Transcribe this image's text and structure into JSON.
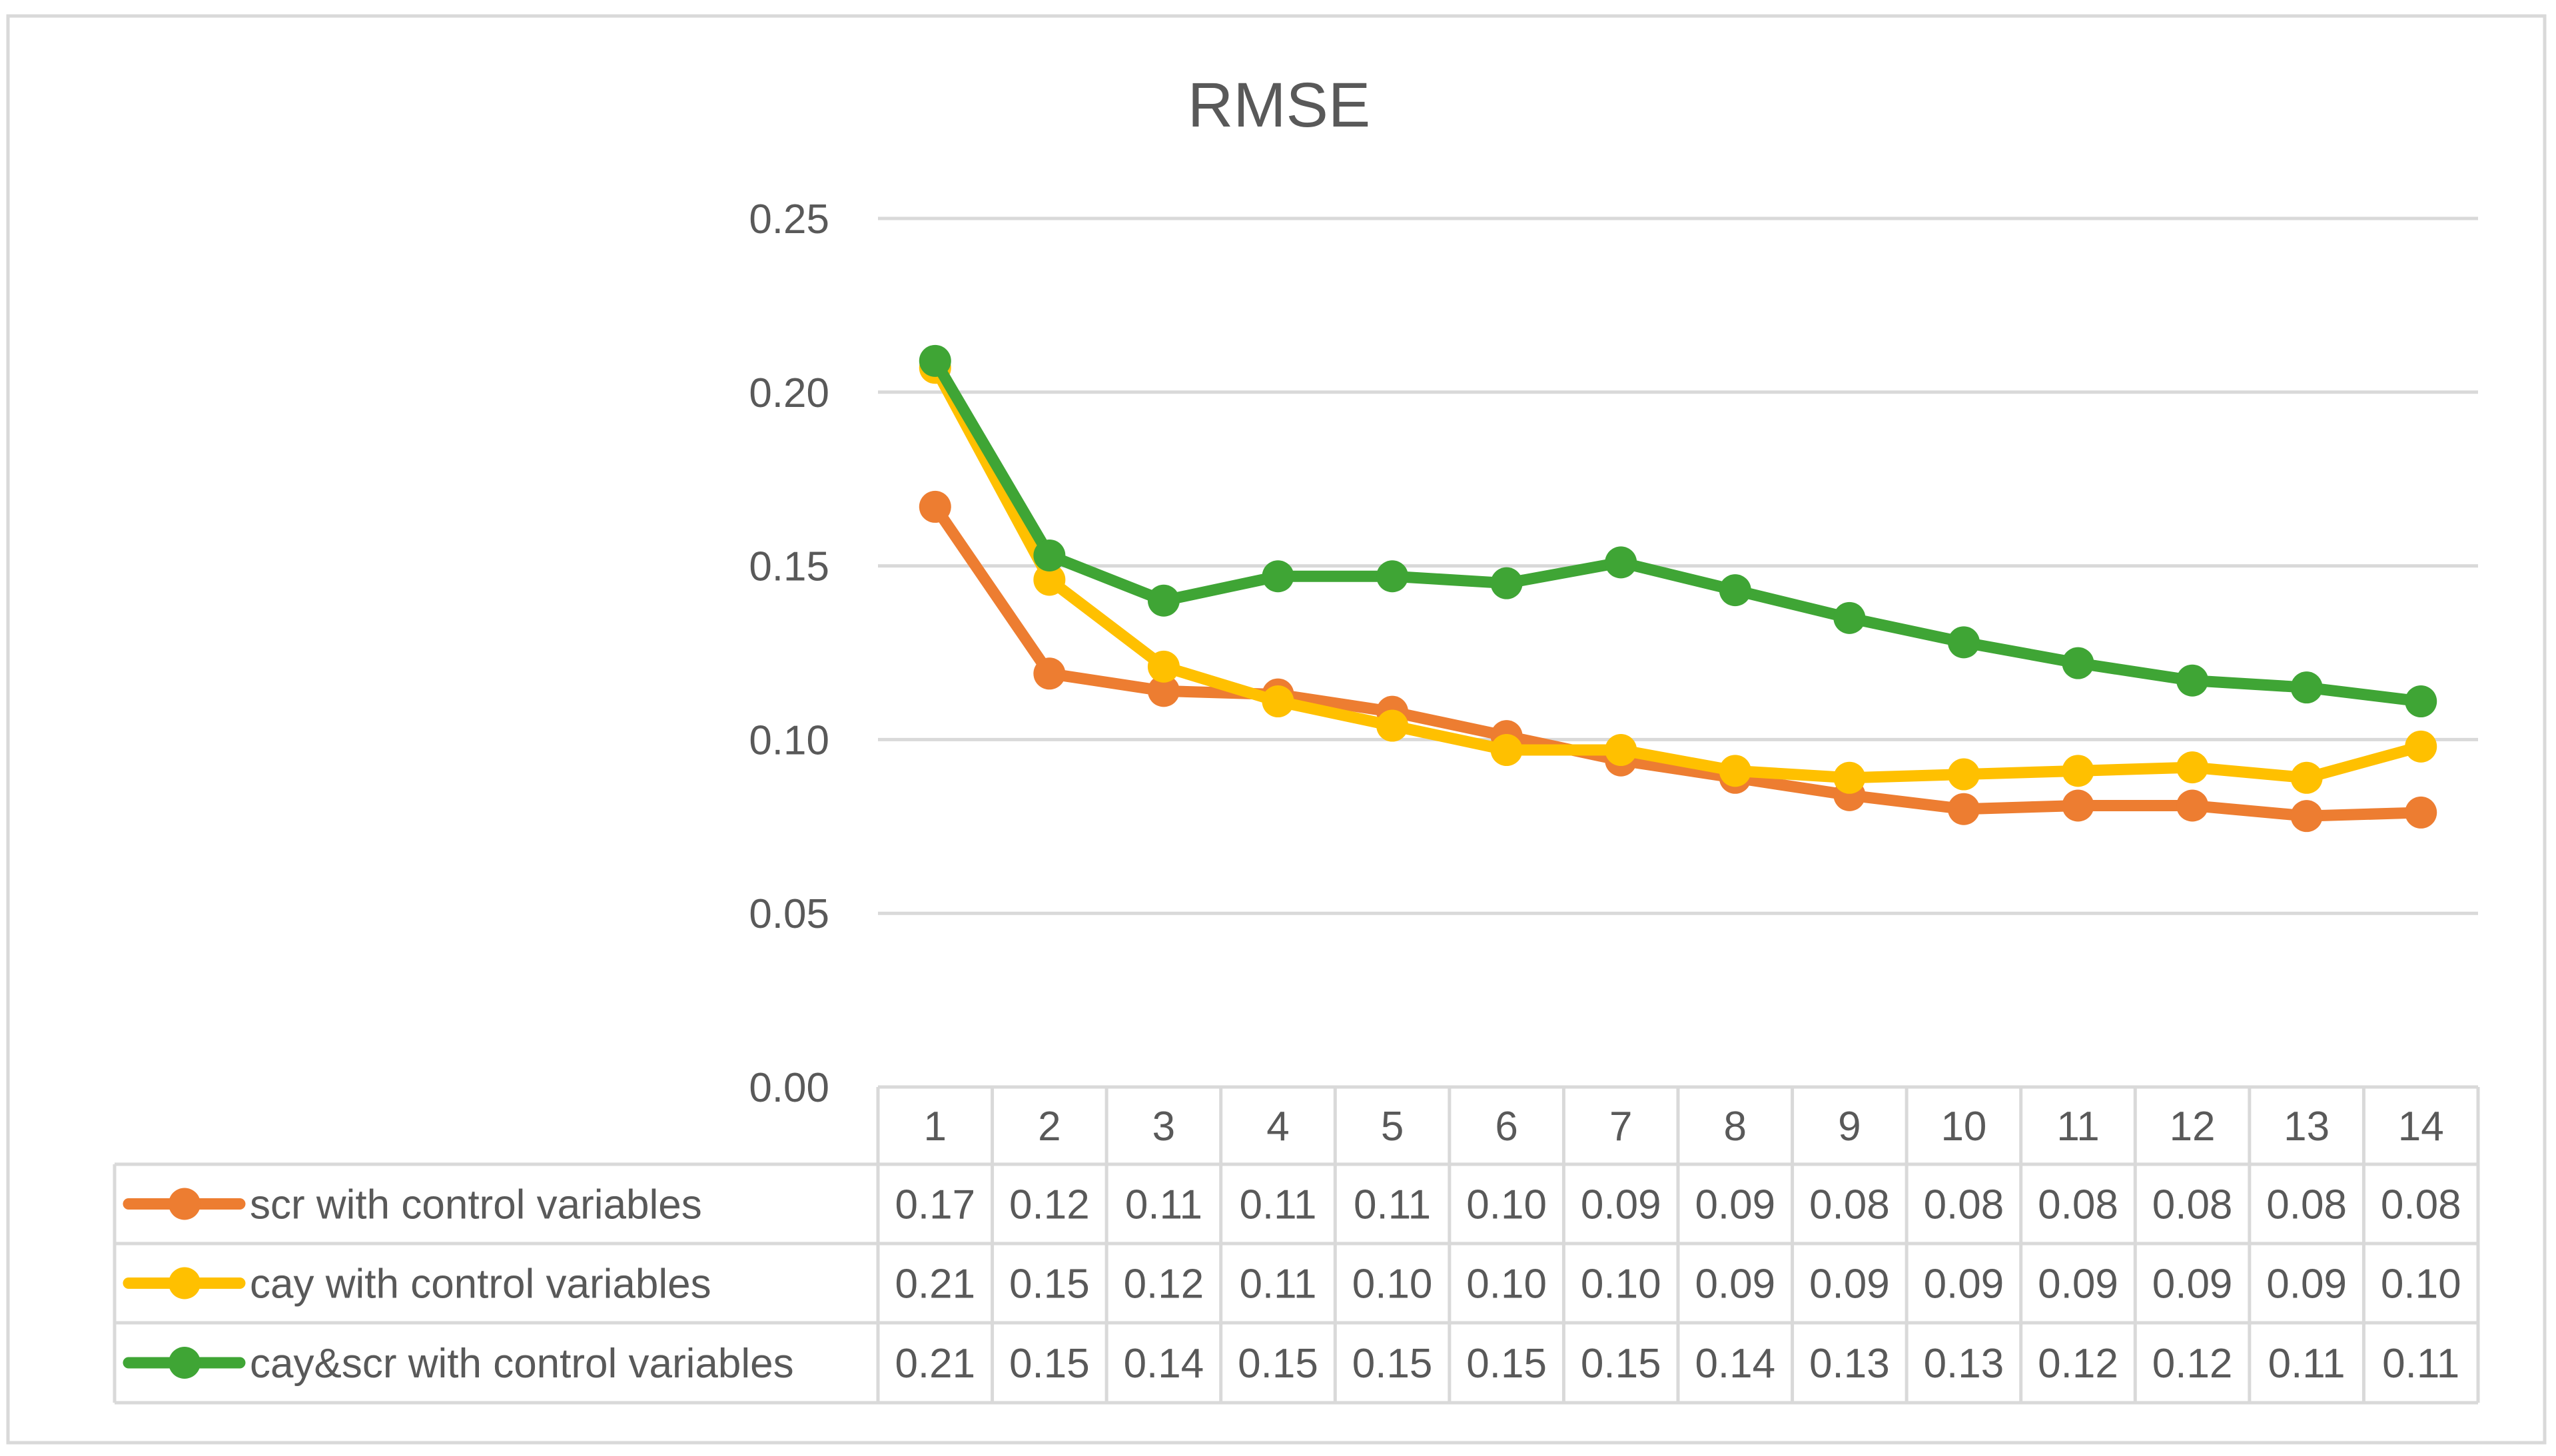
{
  "chart_data": {
    "type": "line",
    "title": "RMSE",
    "xlabel": "",
    "ylabel": "",
    "ylim": [
      0,
      0.25
    ],
    "y_ticks": [
      "0.00",
      "0.05",
      "0.10",
      "0.15",
      "0.20",
      "0.25"
    ],
    "y_tick_values": [
      0,
      0.05,
      0.1,
      0.15,
      0.2,
      0.25
    ],
    "categories": [
      "1",
      "2",
      "3",
      "4",
      "5",
      "6",
      "7",
      "8",
      "9",
      "10",
      "11",
      "12",
      "13",
      "14"
    ],
    "grid": true,
    "legend": "data-table-below",
    "series": [
      {
        "name": "scr with control variables",
        "color": "#ED7D31",
        "values": [
          0.167,
          0.119,
          0.114,
          0.113,
          0.108,
          0.101,
          0.094,
          0.089,
          0.084,
          0.08,
          0.081,
          0.081,
          0.078,
          0.079
        ],
        "table_values": [
          "0.17",
          "0.12",
          "0.11",
          "0.11",
          "0.11",
          "0.10",
          "0.09",
          "0.09",
          "0.08",
          "0.08",
          "0.08",
          "0.08",
          "0.08",
          "0.08"
        ]
      },
      {
        "name": "cay with control variables",
        "color": "#FFC000",
        "values": [
          0.207,
          0.146,
          0.121,
          0.111,
          0.104,
          0.097,
          0.097,
          0.091,
          0.089,
          0.09,
          0.091,
          0.092,
          0.089,
          0.098
        ],
        "table_values": [
          "0.21",
          "0.15",
          "0.12",
          "0.11",
          "0.10",
          "0.10",
          "0.10",
          "0.09",
          "0.09",
          "0.09",
          "0.09",
          "0.09",
          "0.09",
          "0.10"
        ]
      },
      {
        "name": "cay&scr with control variables",
        "color": "#3FA535",
        "values": [
          0.209,
          0.153,
          0.14,
          0.147,
          0.147,
          0.145,
          0.151,
          0.143,
          0.135,
          0.128,
          0.122,
          0.117,
          0.115,
          0.111
        ],
        "table_values": [
          "0.21",
          "0.15",
          "0.14",
          "0.15",
          "0.15",
          "0.15",
          "0.15",
          "0.14",
          "0.13",
          "0.13",
          "0.12",
          "0.12",
          "0.11",
          "0.11"
        ]
      }
    ]
  }
}
